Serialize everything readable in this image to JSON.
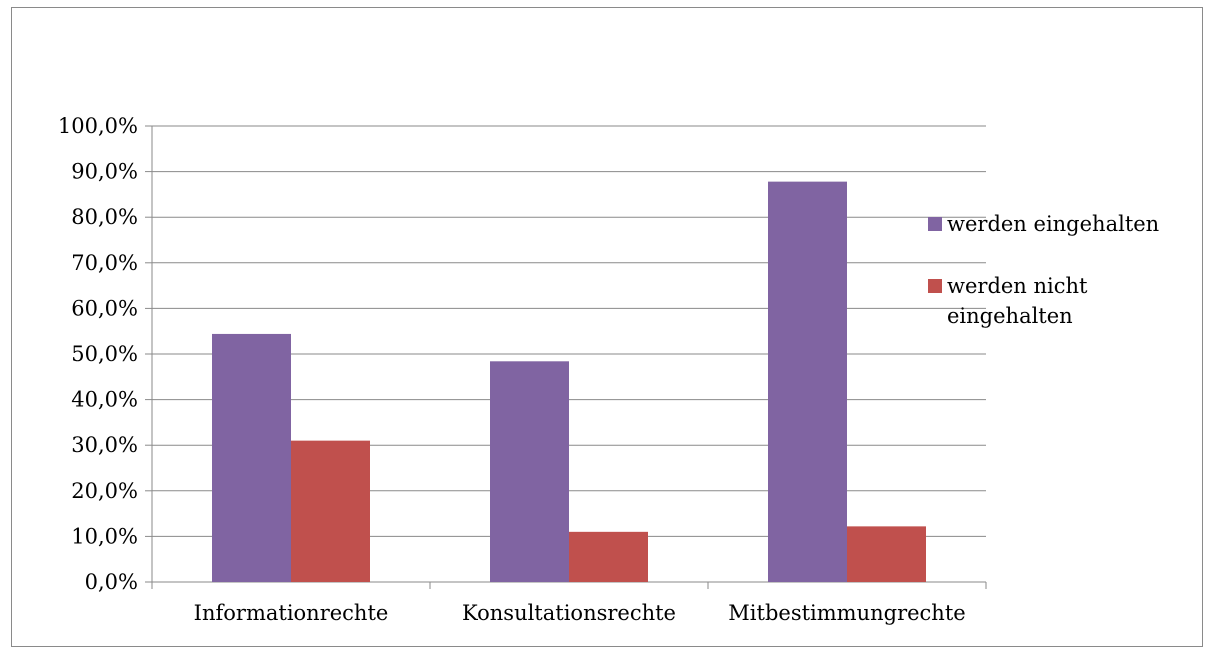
{
  "chart_data": {
    "type": "bar",
    "categories": [
      "Informationrechte",
      "Konsultationsrechte",
      "Mitbestimmungrechte"
    ],
    "series": [
      {
        "name": "werden eingehalten",
        "color": "#8064A2",
        "values": [
          54.4,
          48.4,
          87.8
        ]
      },
      {
        "name": "werden nicht eingehalten",
        "color": "#C0504D",
        "values": [
          31.0,
          11.0,
          12.2
        ]
      }
    ],
    "ylim": [
      0,
      100
    ],
    "yticks": [
      "0,0%",
      "10,0%",
      "20,0%",
      "30,0%",
      "40,0%",
      "50,0%",
      "60,0%",
      "70,0%",
      "80,0%",
      "90,0%",
      "100,0%"
    ],
    "grid": true,
    "legend": "right",
    "legend_lines": [
      [
        "werden eingehalten"
      ],
      [
        "werden nicht",
        "eingehalten"
      ]
    ]
  }
}
